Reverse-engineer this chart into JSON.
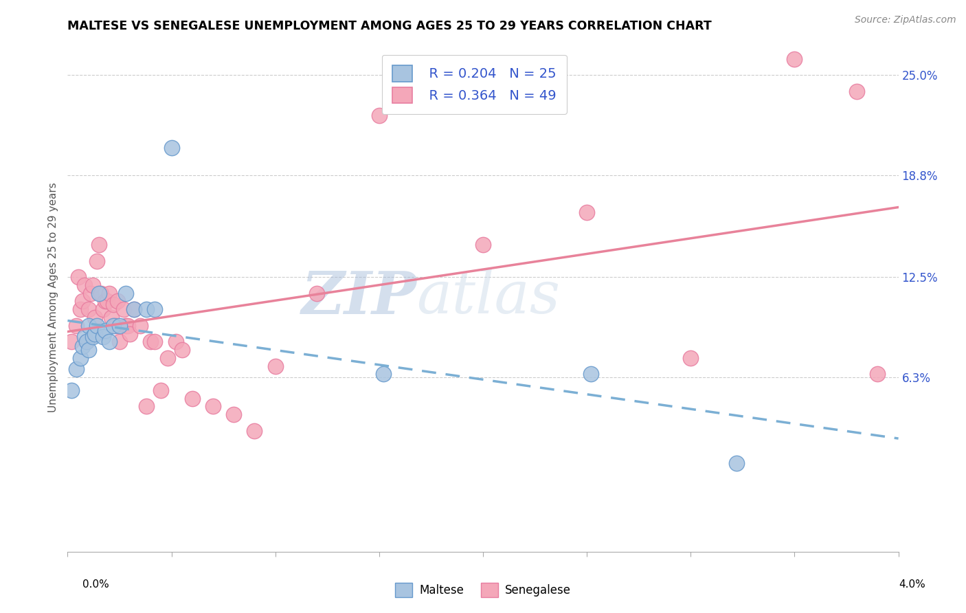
{
  "title": "MALTESE VS SENEGALESE UNEMPLOYMENT AMONG AGES 25 TO 29 YEARS CORRELATION CHART",
  "source": "Source: ZipAtlas.com",
  "ylabel": "Unemployment Among Ages 25 to 29 years",
  "xlim": [
    0.0,
    4.0
  ],
  "ylim": [
    -4.5,
    27.0
  ],
  "yticks": [
    6.3,
    12.5,
    18.8,
    25.0
  ],
  "ytick_labels": [
    "6.3%",
    "12.5%",
    "18.8%",
    "25.0%"
  ],
  "xticks": [
    0.0,
    0.5,
    1.0,
    1.5,
    2.0,
    2.5,
    3.0,
    3.5,
    4.0
  ],
  "maltese_color": "#a8c4e0",
  "senegalese_color": "#f4a7b9",
  "maltese_edge": "#6699cc",
  "senegalese_edge": "#e87da0",
  "trend_maltese_color": "#7bafd4",
  "trend_senegalese_color": "#e8829a",
  "legend_r_maltese": "R = 0.204",
  "legend_n_maltese": "N = 25",
  "legend_r_senegalese": "R = 0.364",
  "legend_n_senegalese": "N = 49",
  "watermark_zip": "ZIP",
  "watermark_atlas": "atlas",
  "maltese_x": [
    0.02,
    0.04,
    0.06,
    0.07,
    0.08,
    0.09,
    0.1,
    0.1,
    0.12,
    0.13,
    0.14,
    0.15,
    0.17,
    0.18,
    0.2,
    0.22,
    0.25,
    0.28,
    0.32,
    0.38,
    0.42,
    0.5,
    1.52,
    2.52,
    3.22
  ],
  "maltese_y": [
    5.5,
    6.8,
    7.5,
    8.2,
    8.8,
    8.5,
    8.0,
    9.5,
    8.8,
    9.0,
    9.5,
    11.5,
    8.8,
    9.2,
    8.5,
    9.5,
    9.5,
    11.5,
    10.5,
    10.5,
    10.5,
    20.5,
    6.5,
    6.5,
    1.0
  ],
  "senegalese_x": [
    0.02,
    0.04,
    0.05,
    0.06,
    0.07,
    0.08,
    0.09,
    0.1,
    0.11,
    0.12,
    0.13,
    0.14,
    0.15,
    0.16,
    0.17,
    0.18,
    0.19,
    0.2,
    0.21,
    0.22,
    0.23,
    0.24,
    0.25,
    0.27,
    0.28,
    0.29,
    0.3,
    0.32,
    0.35,
    0.38,
    0.4,
    0.42,
    0.45,
    0.48,
    0.52,
    0.55,
    0.6,
    0.7,
    0.8,
    0.9,
    1.0,
    1.2,
    1.5,
    2.0,
    2.5,
    3.0,
    3.5,
    3.8,
    3.9
  ],
  "senegalese_y": [
    8.5,
    9.5,
    12.5,
    10.5,
    11.0,
    12.0,
    8.5,
    10.5,
    11.5,
    12.0,
    10.0,
    13.5,
    14.5,
    11.5,
    10.5,
    11.0,
    11.0,
    11.5,
    10.0,
    10.8,
    9.5,
    11.0,
    8.5,
    10.5,
    9.5,
    9.5,
    9.0,
    10.5,
    9.5,
    4.5,
    8.5,
    8.5,
    5.5,
    7.5,
    8.5,
    8.0,
    5.0,
    4.5,
    4.0,
    3.0,
    7.0,
    11.5,
    22.5,
    14.5,
    16.5,
    7.5,
    26.0,
    24.0,
    6.5
  ]
}
